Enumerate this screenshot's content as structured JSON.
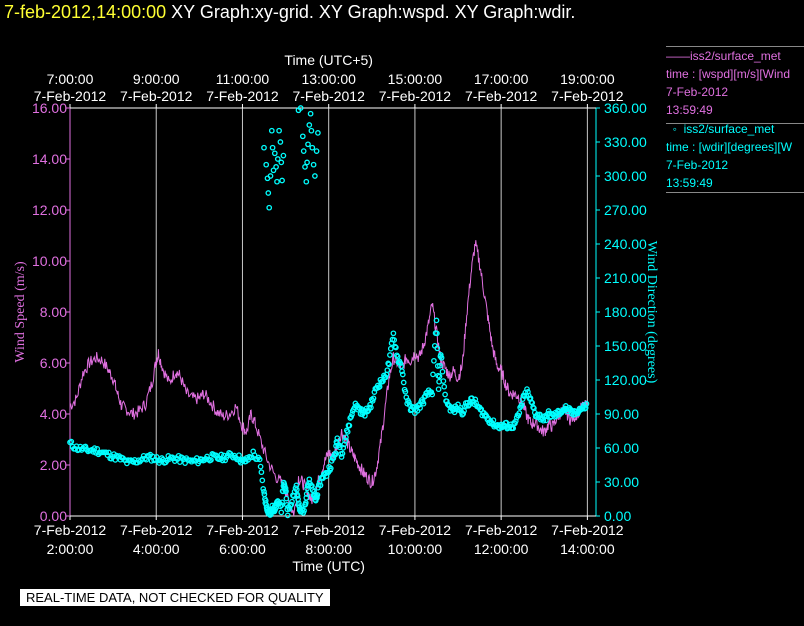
{
  "header": {
    "timestamp": "7-feb-2012,14:00:00",
    "titles": "XY Graph:xy-grid.  XY Graph:wspd.  XY Graph:wdir."
  },
  "legend": [
    {
      "symbol": "——",
      "name": "iss2/surface_met",
      "desc": "time : [wspd][m/s][Wind",
      "date": "7-Feb-2012",
      "time": "13:59:49",
      "color": "#e070e0"
    },
    {
      "symbol": "◦",
      "name": "iss2/surface_met",
      "desc": "time : [wdir][degrees][W",
      "date": "7-Feb-2012",
      "time": "13:59:49",
      "color": "#00ffff"
    }
  ],
  "banner": "REAL-TIME DATA, NOT CHECKED FOR QUALITY",
  "chart_data": {
    "type": "line",
    "top_axis_label": "Time (UTC+5)",
    "xlabel": "Time (UTC)",
    "ylabel_left": "Wind Speed (m/s)",
    "ylabel_right": "Wind Direction (degrees)",
    "xlim": [
      2.0,
      14.2
    ],
    "ylim_left": [
      0,
      16
    ],
    "ylim_right": [
      0,
      360
    ],
    "grid": "vertical",
    "x_ticks": [
      {
        "x": 2,
        "date": "7-Feb-2012",
        "time": "2:00:00"
      },
      {
        "x": 4,
        "date": "7-Feb-2012",
        "time": "4:00:00"
      },
      {
        "x": 6,
        "date": "7-Feb-2012",
        "time": "6:00:00"
      },
      {
        "x": 8,
        "date": "7-Feb-2012",
        "time": "8:00:00"
      },
      {
        "x": 10,
        "date": "7-Feb-2012",
        "time": "10:00:00"
      },
      {
        "x": 12,
        "date": "7-Feb-2012",
        "time": "12:00:00"
      },
      {
        "x": 14,
        "date": "7-Feb-2012",
        "time": "14:00:00"
      }
    ],
    "top_ticks": [
      {
        "x": 2,
        "time": "7:00:00",
        "date": "7-Feb-2012"
      },
      {
        "x": 4,
        "time": "9:00:00",
        "date": "7-Feb-2012"
      },
      {
        "x": 6,
        "time": "11:00:00",
        "date": "7-Feb-2012"
      },
      {
        "x": 8,
        "time": "13:00:00",
        "date": "7-Feb-2012"
      },
      {
        "x": 10,
        "time": "15:00:00",
        "date": "7-Feb-2012"
      },
      {
        "x": 12,
        "time": "17:00:00",
        "date": "7-Feb-2012"
      },
      {
        "x": 14,
        "time": "19:00:00",
        "date": "7-Feb-2012"
      }
    ],
    "y_left_ticks": [
      "0.00",
      "2.00",
      "4.00",
      "6.00",
      "8.00",
      "10.00",
      "12.00",
      "14.00",
      "16.00"
    ],
    "y_right_ticks": [
      "0.00",
      "30.00",
      "60.00",
      "90.00",
      "120.00",
      "150.00",
      "180.00",
      "210.00",
      "240.00",
      "270.00",
      "300.00",
      "330.00",
      "360.00"
    ],
    "series": [
      {
        "name": "iss2/surface_met",
        "axis": "left",
        "color": "#e070e0",
        "points": [
          [
            2.0,
            4.3
          ],
          [
            2.15,
            4.6
          ],
          [
            2.3,
            5.6
          ],
          [
            2.45,
            6.0
          ],
          [
            2.6,
            6.2
          ],
          [
            2.75,
            6.1
          ],
          [
            2.9,
            5.7
          ],
          [
            3.0,
            5.4
          ],
          [
            3.1,
            4.8
          ],
          [
            3.2,
            4.3
          ],
          [
            3.3,
            4.2
          ],
          [
            3.45,
            4.0
          ],
          [
            3.6,
            4.1
          ],
          [
            3.75,
            4.4
          ],
          [
            3.9,
            5.2
          ],
          [
            4.0,
            6.1
          ],
          [
            4.05,
            6.4
          ],
          [
            4.15,
            5.8
          ],
          [
            4.3,
            5.2
          ],
          [
            4.45,
            5.7
          ],
          [
            4.55,
            5.5
          ],
          [
            4.7,
            4.8
          ],
          [
            4.85,
            4.6
          ],
          [
            5.0,
            4.6
          ],
          [
            5.1,
            4.8
          ],
          [
            5.25,
            4.5
          ],
          [
            5.4,
            4.1
          ],
          [
            5.55,
            3.9
          ],
          [
            5.7,
            4.0
          ],
          [
            5.85,
            4.3
          ],
          [
            6.0,
            3.5
          ],
          [
            6.1,
            3.3
          ],
          [
            6.2,
            4.0
          ],
          [
            6.3,
            3.6
          ],
          [
            6.45,
            2.8
          ],
          [
            6.6,
            2.1
          ],
          [
            6.75,
            1.6
          ],
          [
            6.9,
            1.3
          ],
          [
            7.0,
            1.0
          ],
          [
            7.1,
            0.4
          ],
          [
            7.2,
            0.1
          ],
          [
            7.3,
            1.5
          ],
          [
            7.4,
            1.3
          ],
          [
            7.5,
            1.0
          ],
          [
            7.6,
            0.6
          ],
          [
            7.7,
            1.0
          ],
          [
            7.8,
            1.6
          ],
          [
            7.9,
            2.1
          ],
          [
            8.0,
            2.5
          ],
          [
            8.1,
            2.3
          ],
          [
            8.2,
            2.8
          ],
          [
            8.3,
            3.3
          ],
          [
            8.4,
            3.0
          ],
          [
            8.5,
            2.6
          ],
          [
            8.6,
            2.3
          ],
          [
            8.7,
            2.0
          ],
          [
            8.8,
            1.7
          ],
          [
            8.9,
            1.5
          ],
          [
            9.0,
            1.3
          ],
          [
            9.1,
            1.8
          ],
          [
            9.2,
            2.8
          ],
          [
            9.3,
            4.1
          ],
          [
            9.4,
            5.4
          ],
          [
            9.5,
            6.2
          ],
          [
            9.6,
            6.0
          ],
          [
            9.7,
            5.8
          ],
          [
            9.8,
            6.2
          ],
          [
            9.9,
            6.1
          ],
          [
            10.0,
            6.4
          ],
          [
            10.1,
            6.2
          ],
          [
            10.2,
            6.7
          ],
          [
            10.3,
            7.4
          ],
          [
            10.4,
            8.3
          ],
          [
            10.5,
            7.2
          ],
          [
            10.6,
            6.1
          ],
          [
            10.7,
            5.8
          ],
          [
            10.8,
            5.5
          ],
          [
            10.9,
            5.7
          ],
          [
            11.0,
            5.4
          ],
          [
            11.1,
            5.9
          ],
          [
            11.2,
            7.9
          ],
          [
            11.3,
            9.5
          ],
          [
            11.4,
            10.7
          ],
          [
            11.5,
            9.9
          ],
          [
            11.6,
            8.8
          ],
          [
            11.7,
            7.7
          ],
          [
            11.8,
            6.6
          ],
          [
            11.9,
            5.9
          ],
          [
            12.0,
            5.7
          ],
          [
            12.1,
            5.2
          ],
          [
            12.2,
            4.8
          ],
          [
            12.3,
            4.8
          ],
          [
            12.4,
            4.7
          ],
          [
            12.5,
            4.4
          ],
          [
            12.6,
            3.9
          ],
          [
            12.7,
            3.6
          ],
          [
            12.8,
            3.7
          ],
          [
            12.9,
            3.4
          ],
          [
            13.0,
            3.3
          ],
          [
            13.1,
            3.6
          ],
          [
            13.2,
            3.5
          ],
          [
            13.3,
            3.9
          ],
          [
            13.4,
            4.1
          ],
          [
            13.5,
            4.1
          ],
          [
            13.6,
            3.8
          ],
          [
            13.7,
            3.9
          ],
          [
            13.8,
            4.1
          ],
          [
            13.9,
            4.3
          ],
          [
            14.0,
            4.3
          ]
        ]
      },
      {
        "name": "iss2/surface_met",
        "axis": "right",
        "color": "#00ffff",
        "points": [
          [
            2.0,
            64
          ],
          [
            2.15,
            60
          ],
          [
            2.3,
            59
          ],
          [
            2.45,
            58
          ],
          [
            2.6,
            58
          ],
          [
            2.75,
            56
          ],
          [
            2.9,
            54
          ],
          [
            3.05,
            52
          ],
          [
            3.2,
            50
          ],
          [
            3.35,
            47
          ],
          [
            3.5,
            48
          ],
          [
            3.65,
            50
          ],
          [
            3.8,
            52
          ],
          [
            3.95,
            51
          ],
          [
            4.1,
            49
          ],
          [
            4.25,
            50
          ],
          [
            4.4,
            51
          ],
          [
            4.55,
            50
          ],
          [
            4.7,
            49
          ],
          [
            4.85,
            48
          ],
          [
            5.0,
            49
          ],
          [
            5.15,
            51
          ],
          [
            5.3,
            52
          ],
          [
            5.45,
            51
          ],
          [
            5.6,
            52
          ],
          [
            5.75,
            54
          ],
          [
            5.9,
            52
          ],
          [
            6.0,
            48
          ],
          [
            6.1,
            49
          ],
          [
            6.25,
            55
          ],
          [
            6.4,
            48
          ],
          [
            6.5,
            20
          ],
          [
            6.55,
            10
          ],
          [
            6.6,
            4
          ],
          [
            6.65,
            2
          ],
          [
            6.7,
            8
          ],
          [
            6.75,
            6
          ],
          [
            6.8,
            12
          ],
          [
            6.9,
            6
          ],
          [
            6.95,
            28
          ],
          [
            7.0,
            23
          ],
          [
            7.05,
            3
          ],
          [
            7.15,
            15
          ],
          [
            7.25,
            27
          ],
          [
            7.3,
            10
          ],
          [
            7.35,
            3
          ],
          [
            7.45,
            7
          ],
          [
            7.5,
            26
          ],
          [
            7.55,
            30
          ],
          [
            7.65,
            20
          ],
          [
            7.7,
            14
          ],
          [
            7.75,
            22
          ],
          [
            7.85,
            35
          ],
          [
            7.95,
            37
          ],
          [
            8.05,
            45
          ],
          [
            8.15,
            55
          ],
          [
            8.2,
            68
          ],
          [
            8.3,
            55
          ],
          [
            8.4,
            70
          ],
          [
            8.5,
            85
          ],
          [
            8.6,
            98
          ],
          [
            8.7,
            95
          ],
          [
            8.8,
            90
          ],
          [
            8.9,
            93
          ],
          [
            9.0,
            100
          ],
          [
            9.1,
            113
          ],
          [
            9.2,
            118
          ],
          [
            9.3,
            122
          ],
          [
            9.4,
            135
          ],
          [
            9.5,
            160
          ],
          [
            9.6,
            140
          ],
          [
            9.7,
            130
          ],
          [
            9.8,
            102
          ],
          [
            9.9,
            96
          ],
          [
            10.0,
            93
          ],
          [
            10.1,
            97
          ],
          [
            10.2,
            102
          ],
          [
            10.3,
            108
          ],
          [
            10.4,
            110
          ],
          [
            10.5,
            172
          ],
          [
            10.55,
            110
          ],
          [
            10.6,
            145
          ],
          [
            10.7,
            105
          ],
          [
            10.8,
            96
          ],
          [
            10.9,
            93
          ],
          [
            11.0,
            96
          ],
          [
            11.1,
            92
          ],
          [
            11.2,
            98
          ],
          [
            11.3,
            102
          ],
          [
            11.4,
            100
          ],
          [
            11.5,
            94
          ],
          [
            11.6,
            90
          ],
          [
            11.7,
            86
          ],
          [
            11.8,
            82
          ],
          [
            11.9,
            80
          ],
          [
            12.0,
            79
          ],
          [
            12.1,
            80
          ],
          [
            12.2,
            79
          ],
          [
            12.3,
            80
          ],
          [
            12.4,
            88
          ],
          [
            12.5,
            102
          ],
          [
            12.6,
            110
          ],
          [
            12.7,
            100
          ],
          [
            12.8,
            90
          ],
          [
            12.9,
            88
          ],
          [
            13.0,
            85
          ],
          [
            13.1,
            90
          ],
          [
            13.2,
            88
          ],
          [
            13.3,
            90
          ],
          [
            13.4,
            93
          ],
          [
            13.5,
            95
          ],
          [
            13.6,
            92
          ],
          [
            13.7,
            90
          ],
          [
            13.8,
            94
          ],
          [
            13.9,
            95
          ],
          [
            14.0,
            98
          ]
        ],
        "extra_points": [
          [
            6.5,
            325
          ],
          [
            6.55,
            310
          ],
          [
            6.58,
            298
          ],
          [
            6.6,
            285
          ],
          [
            6.62,
            272
          ],
          [
            6.65,
            300
          ],
          [
            6.68,
            340
          ],
          [
            6.7,
            325
          ],
          [
            6.72,
            305
          ],
          [
            6.75,
            320
          ],
          [
            6.78,
            308
          ],
          [
            6.8,
            295
          ],
          [
            6.82,
            315
          ],
          [
            6.85,
            340
          ],
          [
            6.88,
            330
          ],
          [
            6.9,
            312
          ],
          [
            6.92,
            296
          ],
          [
            6.95,
            318
          ],
          [
            7.4,
            335
          ],
          [
            7.42,
            322
          ],
          [
            7.45,
            308
          ],
          [
            7.48,
            295
          ],
          [
            7.5,
            312
          ],
          [
            7.52,
            328
          ],
          [
            7.55,
            345
          ],
          [
            7.58,
            355
          ],
          [
            7.6,
            340
          ],
          [
            7.62,
            325
          ],
          [
            7.65,
            310
          ],
          [
            7.68,
            300
          ],
          [
            7.72,
            322
          ],
          [
            7.75,
            338
          ],
          [
            7.3,
            358
          ],
          [
            7.35,
            360
          ]
        ]
      }
    ]
  }
}
